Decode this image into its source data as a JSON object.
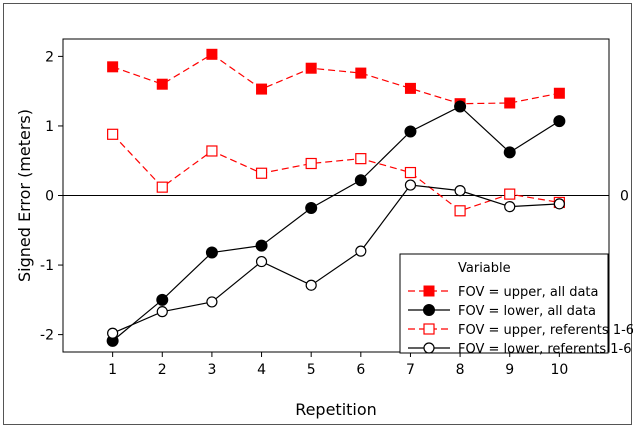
{
  "chart_data": {
    "type": "line",
    "title": "",
    "xlabel": "Repetition",
    "ylabel": "Signed Error (meters)",
    "x": [
      1,
      2,
      3,
      4,
      5,
      6,
      7,
      8,
      9,
      10
    ],
    "xticks": [
      "1",
      "2",
      "3",
      "4",
      "5",
      "6",
      "7",
      "8",
      "9",
      "10"
    ],
    "yticks": [
      {
        "value": 2,
        "label": "2"
      },
      {
        "value": 1,
        "label": "1"
      },
      {
        "value": 0,
        "label": "0"
      },
      {
        "value": -1,
        "label": "-1"
      },
      {
        "value": -2,
        "label": "-2"
      }
    ],
    "xlim": [
      0,
      11
    ],
    "ylim": [
      -2.25,
      2.25
    ],
    "reference_line": {
      "value": 0,
      "label": "0"
    },
    "grid": false,
    "legend_title": "Variable",
    "legend_position": "bottom-right",
    "series": [
      {
        "name": "FOV = upper, all data",
        "color": "#ff0000",
        "dashed": true,
        "marker": "filled-square",
        "values": [
          1.85,
          1.6,
          2.03,
          1.53,
          1.83,
          1.76,
          1.54,
          1.32,
          1.33,
          1.47
        ]
      },
      {
        "name": "FOV = lower, all data",
        "color": "#000000",
        "dashed": false,
        "marker": "filled-circle",
        "values": [
          -2.09,
          -1.5,
          -0.82,
          -0.72,
          -0.18,
          0.22,
          0.92,
          1.28,
          0.62,
          1.07
        ]
      },
      {
        "name": "FOV = upper, referents 1-6",
        "color": "#ff0000",
        "dashed": true,
        "marker": "open-square",
        "values": [
          0.88,
          0.12,
          0.64,
          0.32,
          0.46,
          0.53,
          0.33,
          -0.22,
          0.02,
          -0.1
        ]
      },
      {
        "name": "FOV = lower, referents 1-6",
        "color": "#000000",
        "dashed": false,
        "marker": "open-circle",
        "values": [
          -1.98,
          -1.67,
          -1.53,
          -0.95,
          -1.29,
          -0.8,
          0.15,
          0.07,
          -0.16,
          -0.12
        ]
      }
    ]
  }
}
